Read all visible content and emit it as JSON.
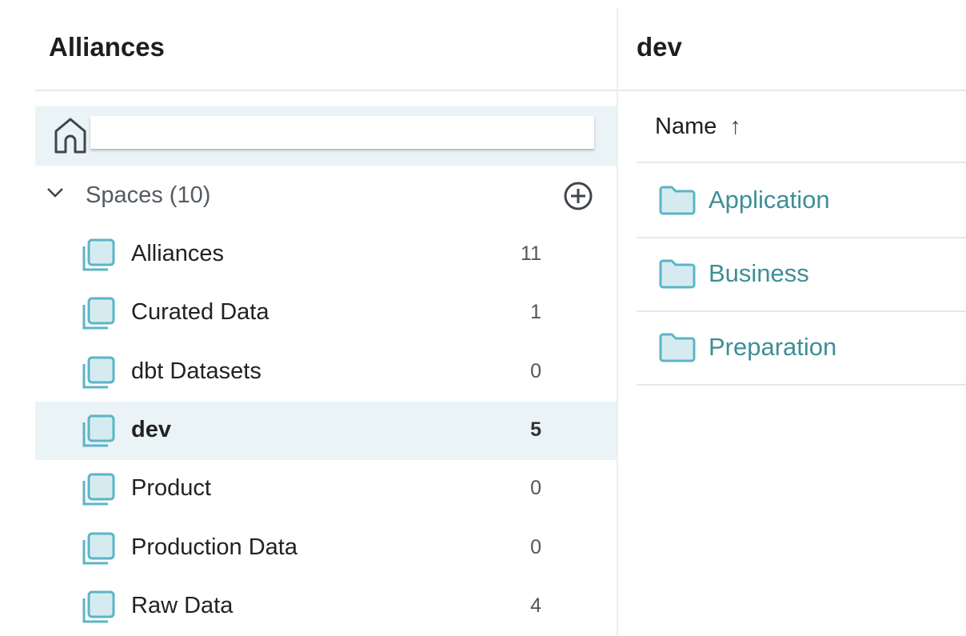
{
  "sidebar": {
    "title": "Alliances",
    "spaces_label": "Spaces (10)",
    "items": [
      {
        "label": "Alliances",
        "count": "11"
      },
      {
        "label": "Curated Data",
        "count": "1"
      },
      {
        "label": "dbt Datasets",
        "count": "0"
      },
      {
        "label": "dev",
        "count": "5",
        "selected": true
      },
      {
        "label": "Product",
        "count": "0"
      },
      {
        "label": "Production Data",
        "count": "0"
      },
      {
        "label": "Raw Data",
        "count": "4"
      }
    ]
  },
  "main": {
    "title": "dev",
    "column_header": "Name",
    "sort_indicator": "↑",
    "rows": [
      {
        "label": "Application"
      },
      {
        "label": "Business"
      },
      {
        "label": "Preparation"
      }
    ]
  },
  "colors": {
    "accent": "#3d8f96",
    "icon": "#5bb5c6",
    "icon_fill": "#d6ebf0",
    "selected_bg": "#eaf3f6"
  }
}
